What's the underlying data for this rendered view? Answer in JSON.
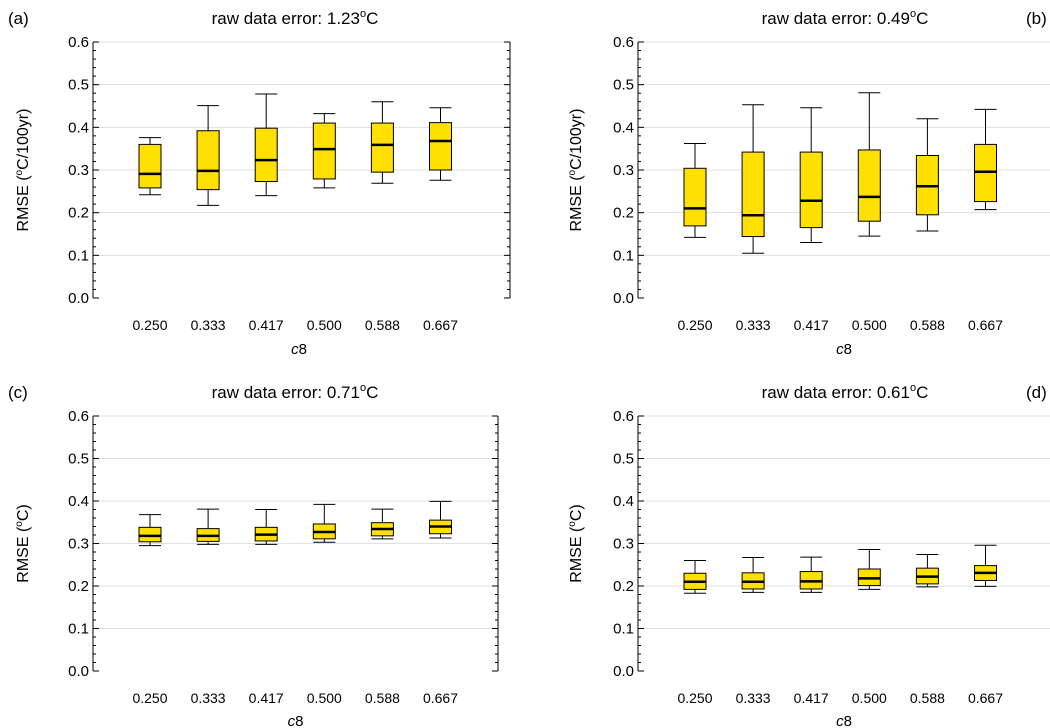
{
  "figure": {
    "background": "#ffffff",
    "box_fill": "#ffe000",
    "grid_color": "#e0e0e0"
  },
  "chart_data": [
    {
      "type": "boxplot",
      "panel_label": "(a)",
      "label_side": "left",
      "title_prefix": "raw data error: 1.23",
      "title_unit": "C",
      "ylabel_prefix": "RMSE (",
      "ylabel_unit": "C/100yr)",
      "xlabel": "c8",
      "ylim": [
        0,
        0.6
      ],
      "yticks": [
        "0.0",
        "0.1",
        "0.2",
        "0.3",
        "0.4",
        "0.5",
        "0.6"
      ],
      "categories": [
        "0.250",
        "0.333",
        "0.417",
        "0.500",
        "0.588",
        "0.667"
      ],
      "boxes": [
        {
          "whisker_low": 0.242,
          "q1": 0.258,
          "median": 0.291,
          "q3": 0.36,
          "whisker_high": 0.376
        },
        {
          "whisker_low": 0.217,
          "q1": 0.254,
          "median": 0.298,
          "q3": 0.392,
          "whisker_high": 0.451
        },
        {
          "whisker_low": 0.24,
          "q1": 0.273,
          "median": 0.323,
          "q3": 0.398,
          "whisker_high": 0.478
        },
        {
          "whisker_low": 0.258,
          "q1": 0.279,
          "median": 0.349,
          "q3": 0.41,
          "whisker_high": 0.432
        },
        {
          "whisker_low": 0.269,
          "q1": 0.295,
          "median": 0.359,
          "q3": 0.41,
          "whisker_high": 0.46
        },
        {
          "whisker_low": 0.276,
          "q1": 0.3,
          "median": 0.368,
          "q3": 0.411,
          "whisker_high": 0.446
        }
      ],
      "grid": true
    },
    {
      "type": "boxplot",
      "panel_label": "(b)",
      "label_side": "right",
      "title_prefix": "raw data error: 0.49",
      "title_unit": "C",
      "ylabel_prefix": "RMSE (",
      "ylabel_unit": "C/100yr)",
      "xlabel": "c8",
      "ylim": [
        0,
        0.6
      ],
      "yticks": [
        "0.0",
        "0.1",
        "0.2",
        "0.3",
        "0.4",
        "0.5",
        "0.6"
      ],
      "categories": [
        "0.250",
        "0.333",
        "0.417",
        "0.500",
        "0.588",
        "0.667"
      ],
      "boxes": [
        {
          "whisker_low": 0.142,
          "q1": 0.169,
          "median": 0.21,
          "q3": 0.304,
          "whisker_high": 0.362
        },
        {
          "whisker_low": 0.105,
          "q1": 0.144,
          "median": 0.194,
          "q3": 0.342,
          "whisker_high": 0.453
        },
        {
          "whisker_low": 0.13,
          "q1": 0.165,
          "median": 0.228,
          "q3": 0.342,
          "whisker_high": 0.446
        },
        {
          "whisker_low": 0.145,
          "q1": 0.18,
          "median": 0.237,
          "q3": 0.347,
          "whisker_high": 0.481
        },
        {
          "whisker_low": 0.157,
          "q1": 0.195,
          "median": 0.262,
          "q3": 0.334,
          "whisker_high": 0.42
        },
        {
          "whisker_low": 0.207,
          "q1": 0.226,
          "median": 0.296,
          "q3": 0.36,
          "whisker_high": 0.442
        }
      ],
      "grid": true
    },
    {
      "type": "boxplot",
      "panel_label": "(c)",
      "label_side": "left",
      "title_prefix": "raw data error: 0.71",
      "title_unit": "C",
      "ylabel_prefix": "RMSE (",
      "ylabel_unit": "C)",
      "xlabel": "c8",
      "ylim": [
        0,
        0.6
      ],
      "yticks": [
        "0.0",
        "0.1",
        "0.2",
        "0.3",
        "0.4",
        "0.5",
        "0.6"
      ],
      "categories": [
        "0.250",
        "0.333",
        "0.417",
        "0.500",
        "0.588",
        "0.667"
      ],
      "boxes": [
        {
          "whisker_low": 0.295,
          "q1": 0.304,
          "median": 0.318,
          "q3": 0.338,
          "whisker_high": 0.368
        },
        {
          "whisker_low": 0.298,
          "q1": 0.305,
          "median": 0.318,
          "q3": 0.335,
          "whisker_high": 0.381
        },
        {
          "whisker_low": 0.298,
          "q1": 0.306,
          "median": 0.321,
          "q3": 0.338,
          "whisker_high": 0.38
        },
        {
          "whisker_low": 0.303,
          "q1": 0.311,
          "median": 0.327,
          "q3": 0.346,
          "whisker_high": 0.392
        },
        {
          "whisker_low": 0.311,
          "q1": 0.318,
          "median": 0.334,
          "q3": 0.349,
          "whisker_high": 0.381
        },
        {
          "whisker_low": 0.313,
          "q1": 0.323,
          "median": 0.34,
          "q3": 0.355,
          "whisker_high": 0.399
        }
      ],
      "grid": true
    },
    {
      "type": "boxplot",
      "panel_label": "(d)",
      "label_side": "right",
      "title_prefix": "raw data error: 0.61",
      "title_unit": "C",
      "ylabel_prefix": "RMSE (",
      "ylabel_unit": "C)",
      "xlabel": "c8",
      "ylim": [
        0,
        0.6
      ],
      "yticks": [
        "0.0",
        "0.1",
        "0.2",
        "0.3",
        "0.4",
        "0.5",
        "0.6"
      ],
      "categories": [
        "0.250",
        "0.333",
        "0.417",
        "0.500",
        "0.588",
        "0.667"
      ],
      "boxes": [
        {
          "whisker_low": 0.183,
          "q1": 0.192,
          "median": 0.21,
          "q3": 0.23,
          "whisker_high": 0.26
        },
        {
          "whisker_low": 0.185,
          "q1": 0.193,
          "median": 0.21,
          "q3": 0.231,
          "whisker_high": 0.267
        },
        {
          "whisker_low": 0.185,
          "q1": 0.193,
          "median": 0.211,
          "q3": 0.234,
          "whisker_high": 0.268
        },
        {
          "whisker_low": 0.192,
          "q1": 0.201,
          "median": 0.218,
          "q3": 0.24,
          "whisker_high": 0.286
        },
        {
          "whisker_low": 0.198,
          "q1": 0.205,
          "median": 0.222,
          "q3": 0.242,
          "whisker_high": 0.274
        },
        {
          "whisker_low": 0.199,
          "q1": 0.213,
          "median": 0.231,
          "q3": 0.248,
          "whisker_high": 0.296
        }
      ],
      "grid": true
    }
  ]
}
